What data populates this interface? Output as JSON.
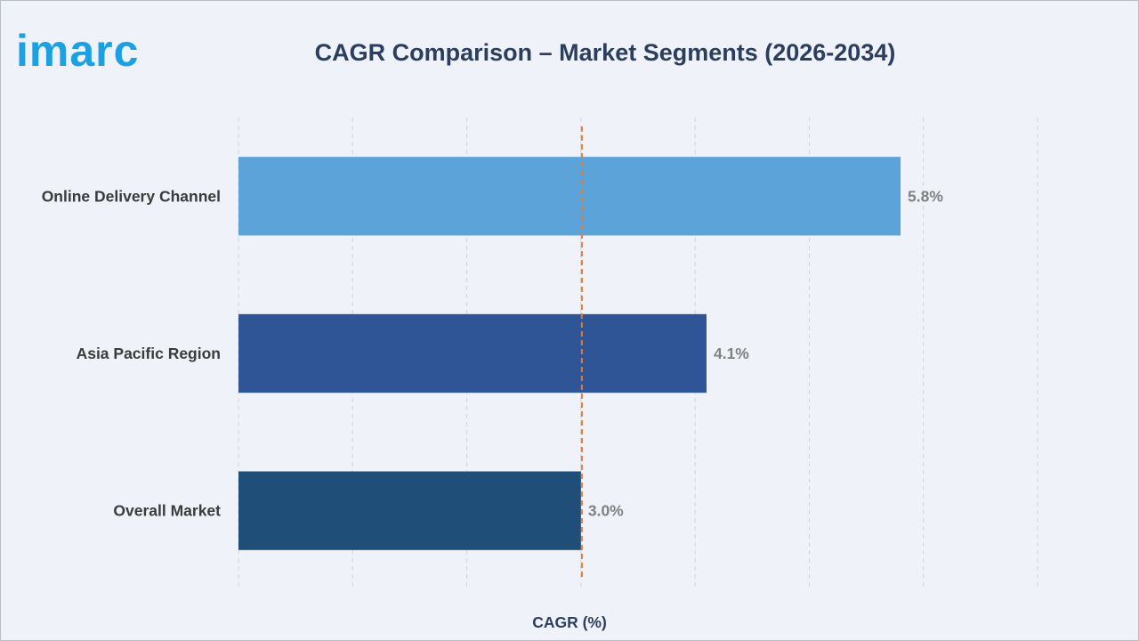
{
  "logo": {
    "text": "imarc",
    "color": "#1ba1e2"
  },
  "chart_data": {
    "type": "bar",
    "orientation": "horizontal",
    "title": "CAGR Comparison – Market Segments (2026-2034)",
    "xlabel": "CAGR (%)",
    "ylabel": "",
    "xlim": [
      0,
      7
    ],
    "grid": true,
    "categories": [
      "Online Delivery Channel",
      "Asia Pacific Region",
      "Overall Market"
    ],
    "values": [
      5.8,
      4.1,
      3.0
    ],
    "value_labels": [
      "5.8%",
      "4.1%",
      "3.0%"
    ],
    "bar_colors": [
      "#5ba3d9",
      "#2f5597",
      "#1f4e79"
    ],
    "reference_line": {
      "value": 3.0,
      "style": "dashed",
      "color": "#e07b39"
    }
  }
}
